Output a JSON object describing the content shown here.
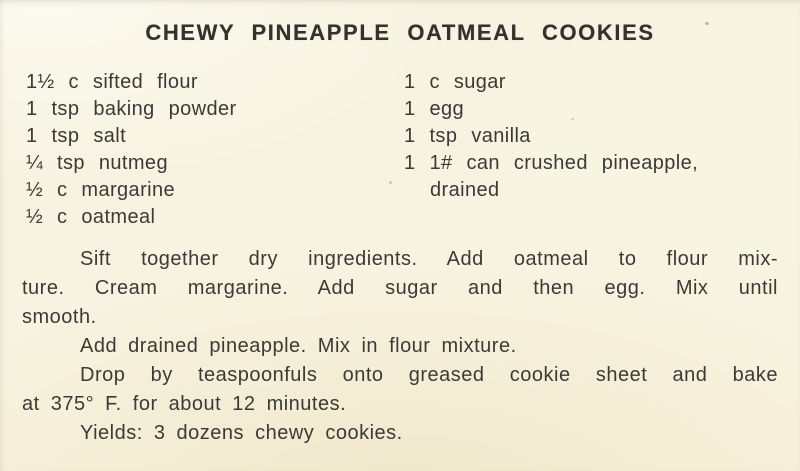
{
  "recipe": {
    "title": "CHEWY PINEAPPLE OATMEAL COOKIES",
    "ingredients_left": [
      "1½ c sifted flour",
      "1 tsp baking powder",
      "1 tsp salt",
      "¼ tsp nutmeg",
      "½ c margarine",
      "½ c oatmeal"
    ],
    "ingredients_right": [
      "1 c sugar",
      "1 egg",
      "1 tsp vanilla",
      "1 1# can crushed pineapple,",
      "drained"
    ],
    "instructions": {
      "p1_l1": "Sift together dry ingredients. Add oatmeal to flour mix-",
      "p1_l2": "ture. Cream margarine. Add sugar and then egg. Mix until",
      "p1_l3": "smooth.",
      "p2_l1": "Add drained pineapple. Mix in flour mixture.",
      "p3_l1": "Drop by teaspoonfuls onto greased cookie sheet and bake",
      "p3_l2": "at 375° F. for about 12 minutes.",
      "p4_l1": "Yields: 3 dozens chewy cookies."
    },
    "colors": {
      "paper": "#f8f3e1",
      "ink": "#3b3a35"
    }
  }
}
